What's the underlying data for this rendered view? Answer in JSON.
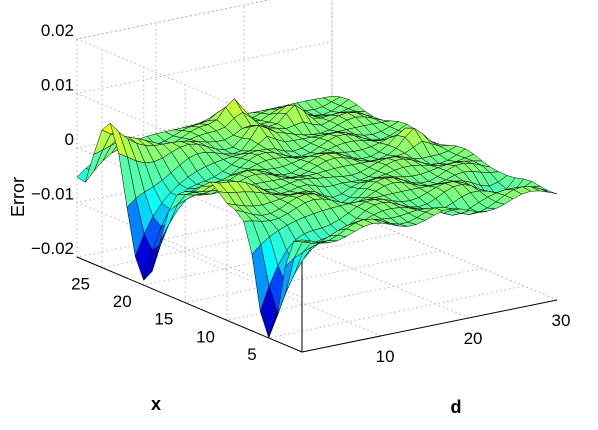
{
  "chart_data": {
    "type": "surface",
    "title": "",
    "zlabel": "Error",
    "xlabel": "x",
    "dlabel": "d",
    "x_ticks": [
      "5",
      "10",
      "15",
      "20",
      "25"
    ],
    "d_ticks": [
      "10",
      "20",
      "30"
    ],
    "z_ticks": [
      "0.02",
      "0.01",
      "0",
      "−0.01",
      "−0.02"
    ],
    "x_range": [
      1,
      28
    ],
    "d_range": [
      1,
      30
    ],
    "z_range": [
      -0.02,
      0.02
    ],
    "grid": true,
    "colormap": "jet",
    "colormap_stops": [
      "#00007f",
      "#0000ff",
      "#00ffff",
      "#7fff7f",
      "#ffff00",
      "#ff0000",
      "#7f0000"
    ],
    "surface_features": [
      {
        "kind": "trough",
        "x": 20,
        "d": 1,
        "z": -0.0185
      },
      {
        "kind": "peak",
        "x": 24,
        "d": 1,
        "z": 0.0085
      },
      {
        "kind": "peak",
        "x": 12,
        "d": 1,
        "z": 0.005
      },
      {
        "kind": "trough",
        "x": 5,
        "d": 1,
        "z": -0.0205
      },
      {
        "kind": "bump",
        "x": 26,
        "d": 17,
        "z": 0.006
      },
      {
        "kind": "bump",
        "x": 24,
        "d": 22,
        "z": 0.004
      }
    ]
  },
  "labels": {
    "zlabel": "Error",
    "xlabel": "x",
    "dlabel": "d"
  }
}
